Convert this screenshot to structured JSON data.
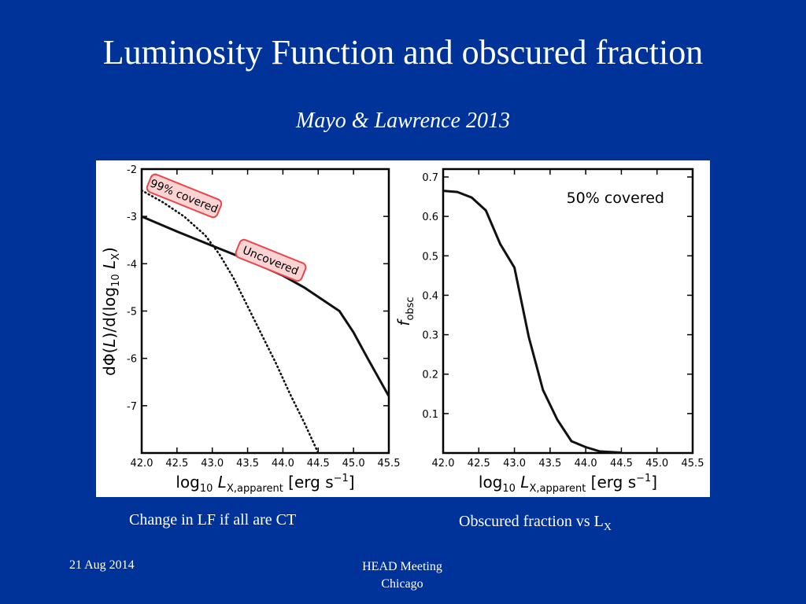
{
  "slide": {
    "title": "Luminosity Function and obscured fraction",
    "subtitle": "Mayo & Lawrence 2013",
    "caption_left": "Change in LF if all are CT",
    "caption_right_main": "Obscured fraction vs L",
    "caption_right_sub": "X",
    "footer_date": "21 Aug 2014",
    "footer_event_line1": "HEAD Meeting",
    "footer_event_line2": "Chicago",
    "background_color": "#003399"
  },
  "chart_data": [
    {
      "type": "line",
      "xlabel": "log10 L X,apparent [erg s−1]",
      "ylabel": "dΦ(L)/d(log10 LX)",
      "xlim": [
        42.0,
        45.5
      ],
      "ylim": [
        -8,
        -2
      ],
      "xticks": [
        "42.0",
        "42.5",
        "43.0",
        "43.5",
        "44.0",
        "44.5",
        "45.0",
        "45.5"
      ],
      "yticks": [
        "-2",
        "-3",
        "-4",
        "-5",
        "-6",
        "-7"
      ],
      "series": [
        {
          "name": "Uncovered",
          "style": "solid",
          "x": [
            42.0,
            42.5,
            43.0,
            43.5,
            44.0,
            44.3,
            44.6,
            44.8,
            45.0,
            45.2,
            45.5
          ],
          "y": [
            -3.0,
            -3.32,
            -3.62,
            -3.92,
            -4.25,
            -4.5,
            -4.8,
            -5.0,
            -5.45,
            -6.0,
            -6.8
          ]
        },
        {
          "name": "99% covered",
          "style": "dotted",
          "x": [
            42.0,
            42.3,
            42.6,
            42.9,
            43.1,
            43.3,
            43.5,
            43.7,
            43.9,
            44.1,
            44.3,
            44.5
          ],
          "y": [
            -2.45,
            -2.7,
            -3.0,
            -3.4,
            -3.8,
            -4.3,
            -4.9,
            -5.5,
            -6.1,
            -6.75,
            -7.35,
            -8.0
          ]
        }
      ],
      "annotations": [
        "99% covered",
        "Uncovered"
      ],
      "annotation_color": "#e8464b"
    },
    {
      "type": "line",
      "xlabel": "log10 L X,apparent [erg s−1]",
      "ylabel": "f obsc",
      "xlim": [
        42.0,
        45.5
      ],
      "ylim": [
        0.0,
        0.72
      ],
      "xticks": [
        "42.0",
        "42.5",
        "43.0",
        "43.5",
        "44.0",
        "44.5",
        "45.0",
        "45.5"
      ],
      "yticks": [
        "0.1",
        "0.2",
        "0.3",
        "0.4",
        "0.5",
        "0.6",
        "0.7"
      ],
      "series": [
        {
          "name": "50% covered",
          "style": "solid",
          "x": [
            42.0,
            42.2,
            42.4,
            42.6,
            42.8,
            43.0,
            43.2,
            43.4,
            43.6,
            43.8,
            44.0,
            44.2,
            44.5
          ],
          "y": [
            0.665,
            0.662,
            0.648,
            0.615,
            0.53,
            0.47,
            0.295,
            0.16,
            0.085,
            0.03,
            0.015,
            0.004,
            0.001
          ]
        }
      ],
      "annotations": [
        "50% covered"
      ]
    }
  ]
}
